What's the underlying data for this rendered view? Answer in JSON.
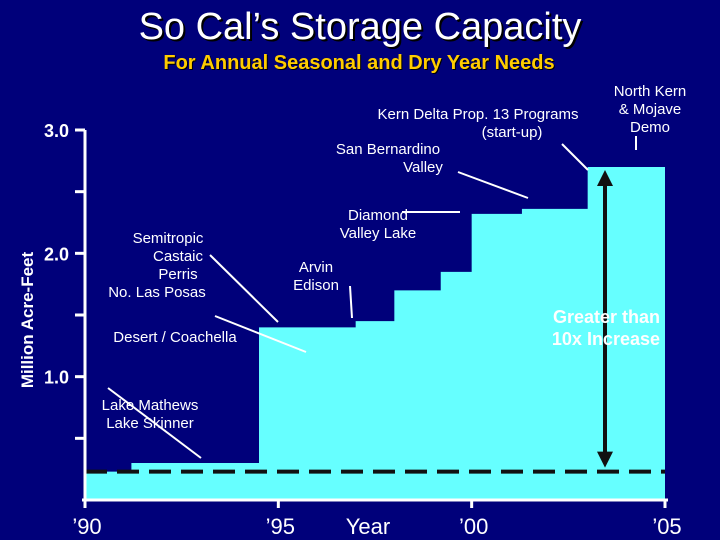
{
  "title": "So Cal’s Storage Capacity",
  "subtitle": "For Annual Seasonal and Dry Year Needs",
  "colors": {
    "background": "#00007a",
    "fill": "#66ffff",
    "title": "#ffffff",
    "subtitle": "#ffcc00",
    "axis": "#ffffff",
    "baseline": "#111111"
  },
  "chart_data": {
    "type": "area",
    "ylabel": "Million Acre-Feet",
    "xlabel": "Year",
    "x_tick_labels": [
      "’90",
      "’95",
      "’00",
      "’05"
    ],
    "y_tick_labels": [
      "1.0",
      "2.0",
      "3.0"
    ],
    "xlim": [
      1990,
      2005
    ],
    "ylim": [
      0,
      3.0
    ],
    "series": [
      {
        "x": [
          1990,
          1990.6,
          1991.2,
          1992.0,
          1993.0,
          1994.5,
          1995.2,
          1996.0,
          1997.0,
          1998.0,
          1999.2,
          2000.0,
          2001.3,
          2003.0,
          2005.0
        ],
        "values": [
          0.23,
          0.23,
          0.3,
          0.3,
          0.3,
          1.4,
          1.4,
          1.4,
          1.45,
          1.7,
          1.85,
          2.32,
          2.36,
          2.7,
          2.7
        ]
      }
    ],
    "baseline_value": 0.23,
    "annotations": [
      {
        "text": [
          "Lake Mathews",
          "Lake Skinner"
        ],
        "x": 1991.8,
        "y": 0.3
      },
      {
        "text": [
          "Desert / Coachella"
        ],
        "x": 1994.7,
        "y": 1.4
      },
      {
        "text": [
          "Semitropic",
          "Castaic",
          "Perris",
          "No. Las Posas"
        ],
        "x": 1995.6,
        "y": 1.45
      },
      {
        "text": [
          "Arvin",
          "Edison"
        ],
        "x": 1997.2,
        "y": 1.7
      },
      {
        "text": [
          "Diamond",
          "Valley Lake"
        ],
        "x": 1999.8,
        "y": 2.32
      },
      {
        "text": [
          "San Bernardino",
          "Valley"
        ],
        "x": 2001.5,
        "y": 2.36
      },
      {
        "text": [
          "Kern Delta Prop. 13 Programs",
          "(start-up)"
        ],
        "x": 2002.8,
        "y": 2.7
      },
      {
        "text": [
          "North Kern",
          "& Mojave",
          "Demo"
        ],
        "x": 2004.2,
        "y": 2.76
      }
    ],
    "callout": [
      "Greater than",
      "10x Increase"
    ]
  }
}
